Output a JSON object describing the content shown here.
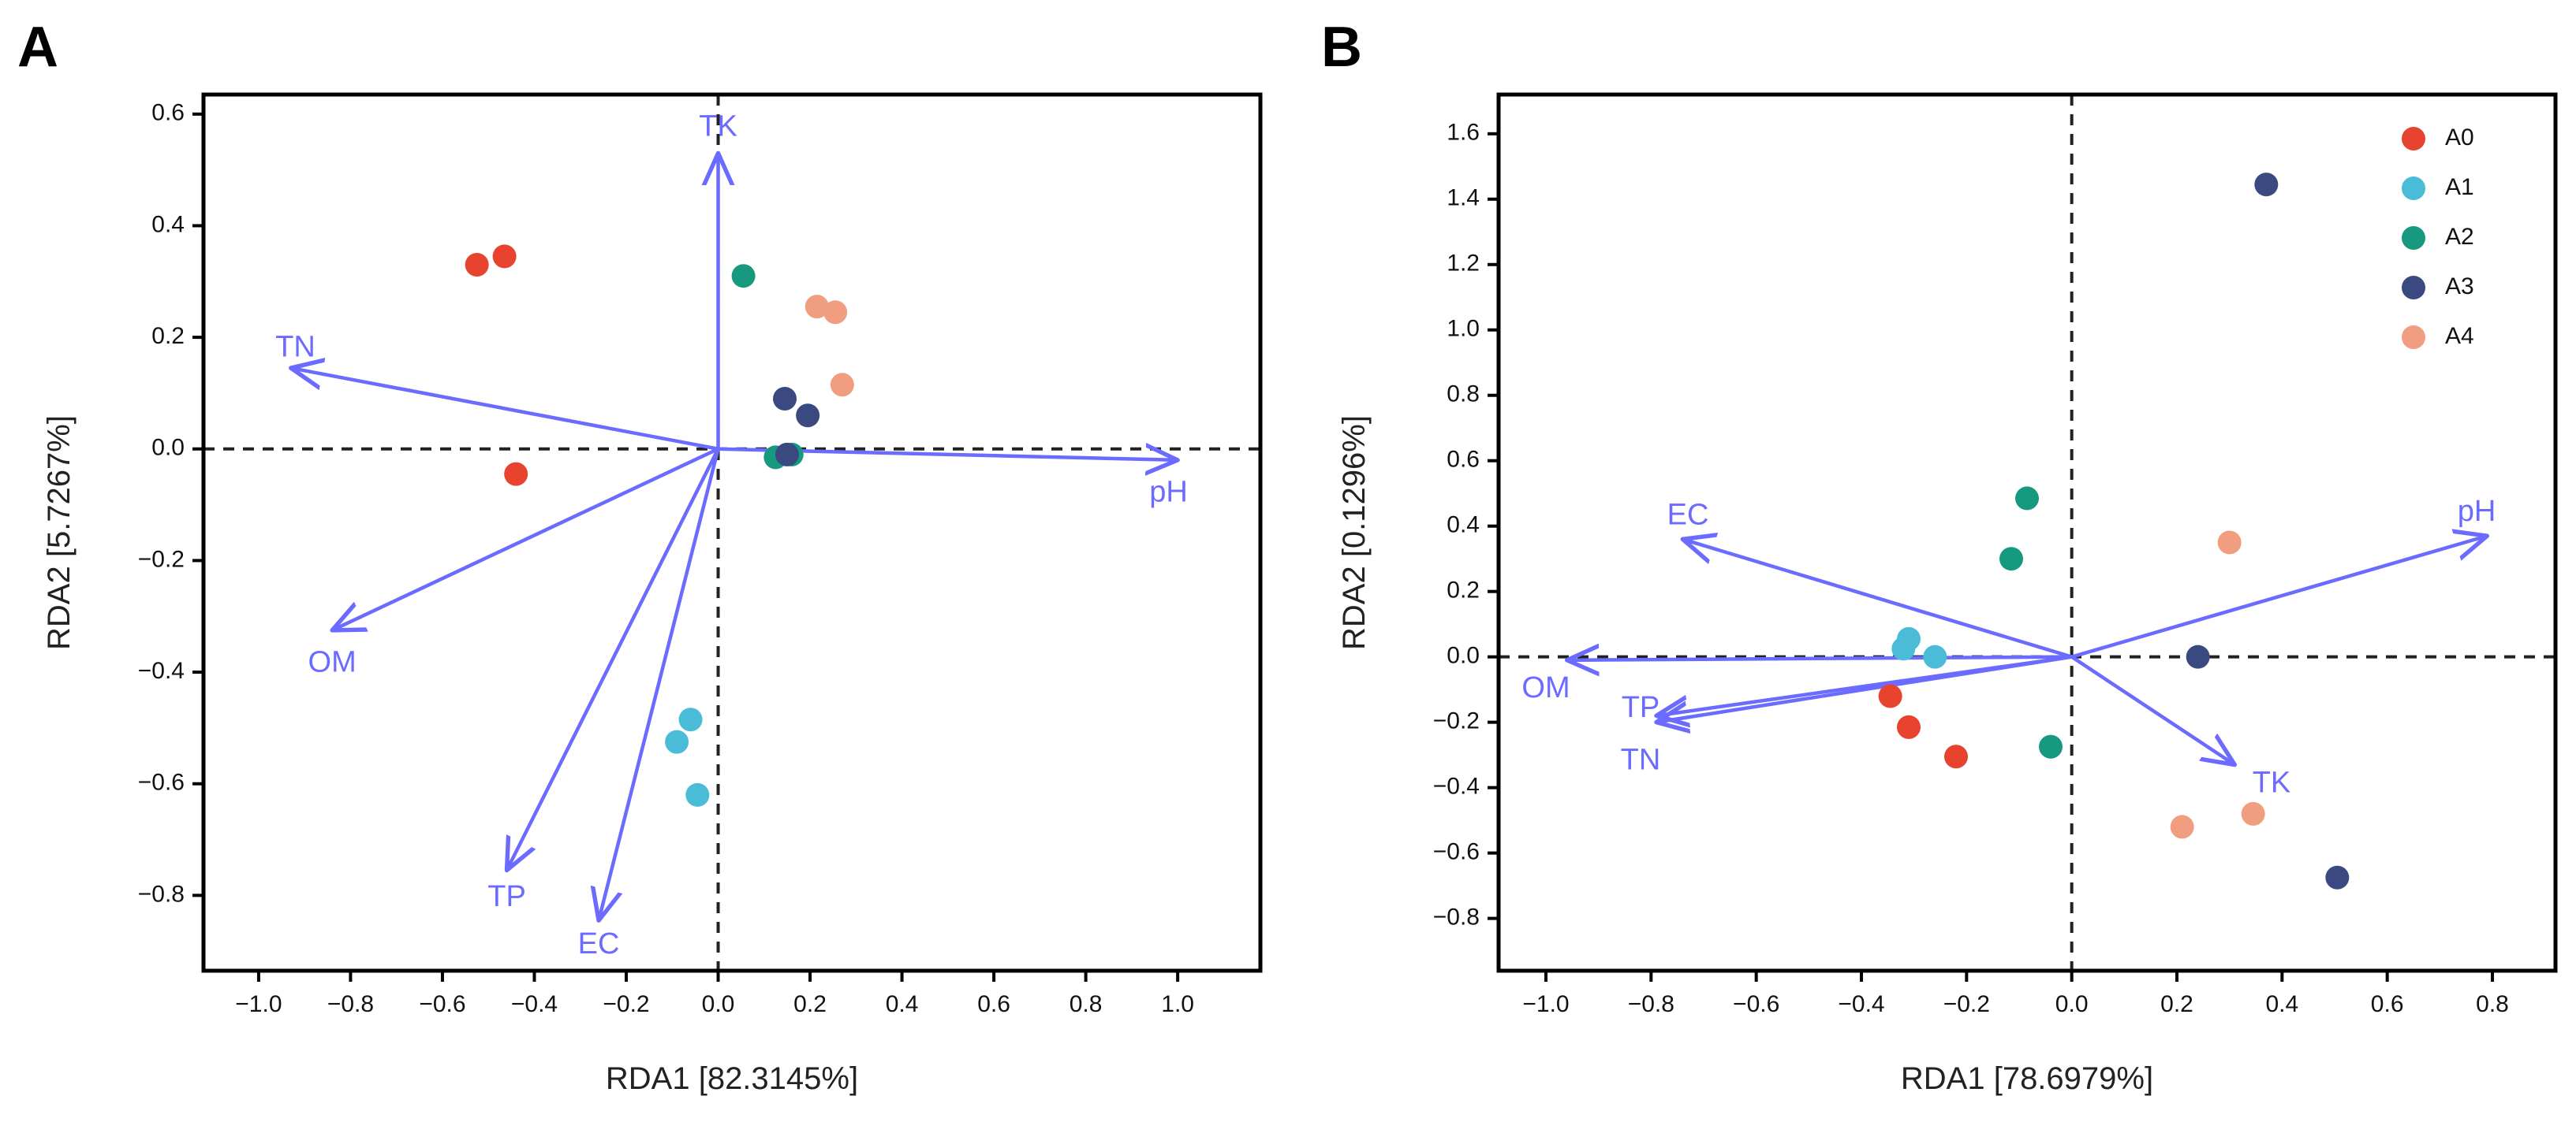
{
  "colors": {
    "A0": "#e8432f",
    "A1": "#4bbcd8",
    "A2": "#17997f",
    "A3": "#3a4a80",
    "A4": "#f19d7f",
    "arrow": "#6b6bff",
    "axis": "#000000"
  },
  "chart_data": [
    {
      "type": "scatter",
      "panel": "A",
      "xlabel": "RDA1 [82.3145%]",
      "ylabel": "RDA2 [5.7267%]",
      "xlim": [
        -1.12,
        1.18
      ],
      "ylim": [
        -0.935,
        0.635
      ],
      "xticks": [
        -1.0,
        -0.8,
        -0.6,
        -0.4,
        -0.2,
        0.0,
        0.2,
        0.4,
        0.6,
        0.8,
        1.0
      ],
      "xtick_labels": [
        "−1.0",
        "−0.8",
        "−0.6",
        "−0.4",
        "−0.2",
        "0.0",
        "0.2",
        "0.4",
        "0.6",
        "0.8",
        "1.0"
      ],
      "yticks": [
        0.6,
        0.4,
        0.2,
        0.0,
        -0.2,
        -0.4,
        -0.6,
        -0.8
      ],
      "ytick_labels": [
        "0.6",
        "0.4",
        "0.2",
        "0.0",
        "−0.2",
        "−0.4",
        "−0.6",
        "−0.8"
      ],
      "vectors": [
        {
          "name": "TK",
          "x": 0.0,
          "y": 0.53,
          "label_x": 0.0,
          "label_y": 0.575
        },
        {
          "name": "TN",
          "x": -0.93,
          "y": 0.145,
          "label_x": -0.92,
          "label_y": 0.18
        },
        {
          "name": "pH",
          "x": 1.0,
          "y": -0.02,
          "label_x": 0.98,
          "label_y": -0.08
        },
        {
          "name": "OM",
          "x": -0.84,
          "y": -0.325,
          "label_x": -0.84,
          "label_y": -0.385
        },
        {
          "name": "TP",
          "x": -0.46,
          "y": -0.755,
          "label_x": -0.46,
          "label_y": -0.805
        },
        {
          "name": "EC",
          "x": -0.26,
          "y": -0.845,
          "label_x": -0.26,
          "label_y": -0.89
        }
      ],
      "series": [
        {
          "name": "A0",
          "points": [
            [
              -0.525,
              0.33
            ],
            [
              -0.465,
              0.345
            ],
            [
              -0.44,
              -0.045
            ]
          ]
        },
        {
          "name": "A1",
          "points": [
            [
              -0.09,
              -0.525
            ],
            [
              -0.06,
              -0.485
            ],
            [
              -0.045,
              -0.62
            ]
          ]
        },
        {
          "name": "A2",
          "points": [
            [
              0.055,
              0.31
            ],
            [
              0.125,
              -0.015
            ],
            [
              0.16,
              -0.01
            ]
          ]
        },
        {
          "name": "A3",
          "points": [
            [
              0.145,
              0.09
            ],
            [
              0.195,
              0.06
            ],
            [
              0.15,
              -0.01
            ]
          ]
        },
        {
          "name": "A4",
          "points": [
            [
              0.215,
              0.255
            ],
            [
              0.255,
              0.245
            ],
            [
              0.27,
              0.115
            ]
          ]
        }
      ]
    },
    {
      "type": "scatter",
      "panel": "B",
      "xlabel": "RDA1 [78.6979%]",
      "ylabel": "RDA2 [0.1296%]",
      "xlim": [
        -1.09,
        0.92
      ],
      "ylim": [
        -0.96,
        1.72
      ],
      "xticks": [
        -1.0,
        -0.8,
        -0.6,
        -0.4,
        -0.2,
        0.0,
        0.2,
        0.4,
        0.6,
        0.8
      ],
      "xtick_labels": [
        "−1.0",
        "−0.8",
        "−0.6",
        "−0.4",
        "−0.2",
        "0.0",
        "0.2",
        "0.4",
        "0.6",
        "0.8"
      ],
      "yticks": [
        1.6,
        1.4,
        1.2,
        1.0,
        0.8,
        0.6,
        0.4,
        0.2,
        0.0,
        -0.2,
        -0.4,
        -0.6,
        -0.8
      ],
      "ytick_labels": [
        "1.6",
        "1.4",
        "1.2",
        "1.0",
        "0.8",
        "0.6",
        "0.4",
        "0.2",
        "0.0",
        "−0.2",
        "−0.4",
        "−0.6",
        "−0.8"
      ],
      "legend": {
        "position": "top-right",
        "entries": [
          "A0",
          "A1",
          "A2",
          "A3",
          "A4"
        ]
      },
      "vectors": [
        {
          "name": "EC",
          "x": -0.74,
          "y": 0.36,
          "label_x": -0.73,
          "label_y": 0.43
        },
        {
          "name": "pH",
          "x": 0.79,
          "y": 0.37,
          "label_x": 0.77,
          "label_y": 0.44
        },
        {
          "name": "OM",
          "x": -0.96,
          "y": -0.01,
          "label_x": -1.0,
          "label_y": -0.1
        },
        {
          "name": "TP",
          "x": -0.79,
          "y": -0.18,
          "label_x": -0.82,
          "label_y": -0.16
        },
        {
          "name": "TN",
          "x": -0.79,
          "y": -0.2,
          "label_x": -0.82,
          "label_y": -0.32
        },
        {
          "name": "TK",
          "x": 0.31,
          "y": -0.33,
          "label_x": 0.38,
          "label_y": -0.39
        }
      ],
      "series": [
        {
          "name": "A0",
          "points": [
            [
              -0.345,
              -0.12
            ],
            [
              -0.31,
              -0.215
            ],
            [
              -0.22,
              -0.305
            ]
          ]
        },
        {
          "name": "A1",
          "points": [
            [
              -0.31,
              0.055
            ],
            [
              -0.32,
              0.025
            ],
            [
              -0.26,
              0.0
            ]
          ]
        },
        {
          "name": "A2",
          "points": [
            [
              -0.085,
              0.485
            ],
            [
              -0.115,
              0.3
            ],
            [
              -0.04,
              -0.275
            ]
          ]
        },
        {
          "name": "A3",
          "points": [
            [
              0.37,
              1.445
            ],
            [
              0.24,
              0.0
            ],
            [
              0.505,
              -0.675
            ]
          ]
        },
        {
          "name": "A4",
          "points": [
            [
              0.3,
              0.35
            ],
            [
              0.345,
              -0.48
            ],
            [
              0.21,
              -0.52
            ]
          ]
        }
      ]
    }
  ]
}
